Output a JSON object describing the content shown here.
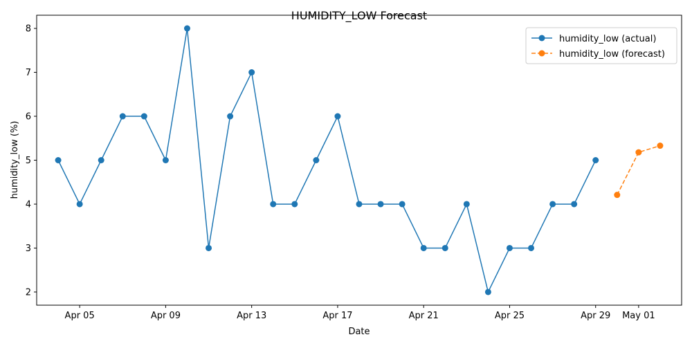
{
  "chart_data": {
    "type": "line",
    "title": "HUMIDITY_LOW Forecast",
    "xlabel": "Date",
    "ylabel": "humidity_low (%)",
    "ylim": [
      1.7,
      8.3
    ],
    "xlim": [
      "2025-04-03T00:00",
      "2025-05-03T00:00"
    ],
    "y_ticks": [
      2,
      3,
      4,
      5,
      6,
      7,
      8
    ],
    "x_ticks": [
      {
        "date": "2025-04-05",
        "label": "Apr 05"
      },
      {
        "date": "2025-04-09",
        "label": "Apr 09"
      },
      {
        "date": "2025-04-13",
        "label": "Apr 13"
      },
      {
        "date": "2025-04-17",
        "label": "Apr 17"
      },
      {
        "date": "2025-04-21",
        "label": "Apr 21"
      },
      {
        "date": "2025-04-25",
        "label": "Apr 25"
      },
      {
        "date": "2025-04-29",
        "label": "Apr 29"
      },
      {
        "date": "2025-05-01",
        "label": "May 01"
      }
    ],
    "grid": false,
    "legend_position": "top-right",
    "series": [
      {
        "name": "humidity_low (actual)",
        "color": "#1f77b4",
        "style": "solid",
        "x": [
          "2025-04-04",
          "2025-04-05",
          "2025-04-06",
          "2025-04-07",
          "2025-04-08",
          "2025-04-09",
          "2025-04-10",
          "2025-04-11",
          "2025-04-12",
          "2025-04-13",
          "2025-04-14",
          "2025-04-15",
          "2025-04-16",
          "2025-04-17",
          "2025-04-18",
          "2025-04-19",
          "2025-04-20",
          "2025-04-21",
          "2025-04-22",
          "2025-04-23",
          "2025-04-24",
          "2025-04-25",
          "2025-04-26",
          "2025-04-27",
          "2025-04-28",
          "2025-04-29"
        ],
        "values": [
          5,
          4,
          5,
          6,
          6,
          5,
          8,
          3,
          6,
          7,
          4,
          4,
          5,
          6,
          4,
          4,
          4,
          3,
          3,
          4,
          2,
          3,
          3,
          4,
          4,
          5
        ]
      },
      {
        "name": "humidity_low (forecast)",
        "color": "#ff7f0e",
        "style": "dashed",
        "x": [
          "2025-04-30",
          "2025-05-01",
          "2025-05-02"
        ],
        "values": [
          4.21,
          5.18,
          5.33
        ]
      }
    ]
  }
}
